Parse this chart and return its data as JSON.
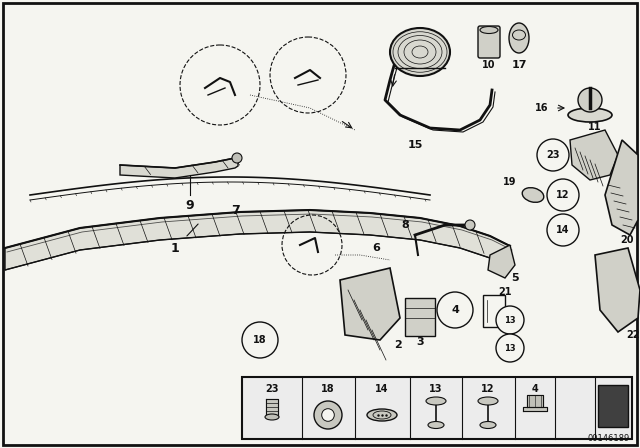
{
  "bg": "#f5f5f0",
  "fg": "#111111",
  "diagram_number": "00146189",
  "figsize": [
    6.4,
    4.48
  ],
  "dpi": 100
}
